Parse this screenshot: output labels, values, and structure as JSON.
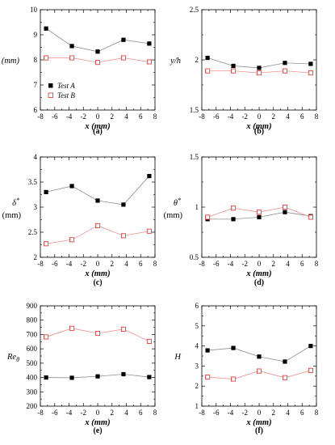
{
  "series_style": {
    "A": {
      "color": "#000000",
      "line": "#909090",
      "marker": "filled-square"
    },
    "B": {
      "color": "#e0433c",
      "line": "#f08f8f",
      "marker": "open-square"
    }
  },
  "chart_data": [
    {
      "id": "a",
      "type": "line",
      "caption": "(a)",
      "ylabel_html": "δ (mm)",
      "xlabel": "x (mm)",
      "xlim": [
        -8,
        8
      ],
      "xticks": [
        -8,
        -6,
        -4,
        -2,
        0,
        2,
        4,
        6,
        8
      ],
      "xtick_labels": [
        "-8",
        "-6",
        "-4",
        "-2",
        "0",
        "2",
        "4",
        "6",
        "8"
      ],
      "ylim": [
        6,
        10
      ],
      "yticks": [
        6,
        7,
        8,
        9,
        10
      ],
      "ytick_labels": [
        "6",
        "7",
        "8",
        "9",
        "10"
      ],
      "x": [
        -7.2,
        -3.6,
        0,
        3.6,
        7.2
      ],
      "series": [
        {
          "name": "Test A",
          "key": "A",
          "values": [
            9.25,
            8.55,
            8.33,
            8.8,
            8.65
          ]
        },
        {
          "name": "Test B",
          "key": "B",
          "values": [
            8.08,
            8.08,
            7.9,
            8.08,
            7.92
          ]
        }
      ],
      "legend": "bottom-left"
    },
    {
      "id": "b",
      "type": "line",
      "caption": "(b)",
      "ylabel_html": "y/h",
      "xlabel": "x (mm)",
      "xlim": [
        -8,
        8
      ],
      "xticks": [
        -8,
        -6,
        -4,
        -2,
        0,
        2,
        4,
        6,
        8
      ],
      "xtick_labels": [
        "-8",
        "-6",
        "-4",
        "-2",
        "0",
        "2",
        "4",
        "6",
        "8"
      ],
      "ylim": [
        1.5,
        2.5
      ],
      "yticks": [
        1.5,
        2,
        2.5
      ],
      "ytick_labels": [
        "1.5",
        "2",
        "2.5"
      ],
      "x": [
        -7.2,
        -3.6,
        0,
        3.6,
        7.2
      ],
      "series": [
        {
          "key": "A",
          "values": [
            2.02,
            1.94,
            1.92,
            1.97,
            1.96
          ]
        },
        {
          "key": "B",
          "values": [
            1.89,
            1.89,
            1.87,
            1.89,
            1.87
          ]
        }
      ]
    },
    {
      "id": "c",
      "type": "line",
      "caption": "(c)",
      "ylabel_html": "δ*",
      "ylabel_unit": "(mm)",
      "xlabel": "x (mm)",
      "xlim": [
        -8,
        8
      ],
      "xticks": [
        -8,
        -6,
        -4,
        -2,
        0,
        2,
        4,
        6,
        8
      ],
      "xtick_labels": [
        "-8",
        "-6",
        "-4",
        "-2",
        "0",
        "2",
        "4",
        "6",
        "8"
      ],
      "ylim": [
        2,
        4
      ],
      "yticks": [
        2,
        2.5,
        3,
        3.5,
        4
      ],
      "ytick_labels": [
        "2",
        "2.5",
        "3",
        "3.5",
        "4"
      ],
      "x": [
        -7.2,
        -3.6,
        0,
        3.6,
        7.2
      ],
      "series": [
        {
          "key": "A",
          "values": [
            3.3,
            3.42,
            3.13,
            3.05,
            3.62
          ]
        },
        {
          "key": "B",
          "values": [
            2.27,
            2.35,
            2.63,
            2.43,
            2.52
          ]
        }
      ]
    },
    {
      "id": "d",
      "type": "line",
      "caption": "(d)",
      "ylabel_html": "θ*",
      "ylabel_unit": "(mm)",
      "xlabel": "x (mm)",
      "xlim": [
        -8,
        8
      ],
      "xticks": [
        -8,
        -6,
        -4,
        -2,
        0,
        2,
        4,
        6,
        8
      ],
      "xtick_labels": [
        "-8",
        "-6",
        "-4",
        "-2",
        "0",
        "2",
        "4",
        "6",
        "8"
      ],
      "ylim": [
        0.5,
        1.5
      ],
      "yticks": [
        0.5,
        1,
        1.5
      ],
      "ytick_labels": [
        "0.5",
        "1",
        "1.5"
      ],
      "x": [
        -7.2,
        -3.6,
        0,
        3.6,
        7.2
      ],
      "series": [
        {
          "key": "A",
          "values": [
            0.88,
            0.88,
            0.9,
            0.95,
            0.91
          ]
        },
        {
          "key": "B",
          "values": [
            0.9,
            0.99,
            0.95,
            1.0,
            0.9
          ]
        }
      ]
    },
    {
      "id": "e",
      "type": "line",
      "caption": "(e)",
      "ylabel_html": "Reθ",
      "xlabel": "x (mm)",
      "xlim": [
        -8,
        8
      ],
      "xticks": [
        -8,
        -6,
        -4,
        -2,
        0,
        2,
        4,
        6,
        8
      ],
      "xtick_labels": [
        "-8",
        "-6",
        "-4",
        "-2",
        "0",
        "2",
        "4",
        "6",
        "8"
      ],
      "ylim": [
        200,
        900
      ],
      "yticks": [
        200,
        300,
        400,
        500,
        600,
        700,
        800,
        900
      ],
      "ytick_labels": [
        "200",
        "300",
        "400",
        "500",
        "600",
        "700",
        "800",
        "900"
      ],
      "x": [
        -7.2,
        -3.6,
        0,
        3.6,
        7.2
      ],
      "series": [
        {
          "key": "A",
          "values": [
            400,
            398,
            408,
            423,
            403
          ]
        },
        {
          "key": "B",
          "values": [
            683,
            743,
            708,
            737,
            652
          ]
        }
      ]
    },
    {
      "id": "f",
      "type": "line",
      "caption": "(f)",
      "ylabel_html": "H",
      "xlabel": "x (mm)",
      "xlim": [
        -8,
        8
      ],
      "xticks": [
        -8,
        -6,
        -4,
        -2,
        0,
        2,
        4,
        6,
        8
      ],
      "xtick_labels": [
        "-8",
        "-6",
        "-4",
        "-2",
        "0",
        "2",
        "4",
        "6",
        "8"
      ],
      "ylim": [
        1,
        6
      ],
      "yticks": [
        1,
        2,
        3,
        4,
        5,
        6
      ],
      "ytick_labels": [
        "1",
        "2",
        "3",
        "4",
        "5",
        "6"
      ],
      "x": [
        -7.2,
        -3.6,
        0,
        3.6,
        7.2
      ],
      "series": [
        {
          "key": "A",
          "values": [
            3.78,
            3.9,
            3.47,
            3.22,
            4.0
          ]
        },
        {
          "key": "B",
          "values": [
            2.45,
            2.35,
            2.75,
            2.42,
            2.78
          ]
        }
      ]
    }
  ]
}
